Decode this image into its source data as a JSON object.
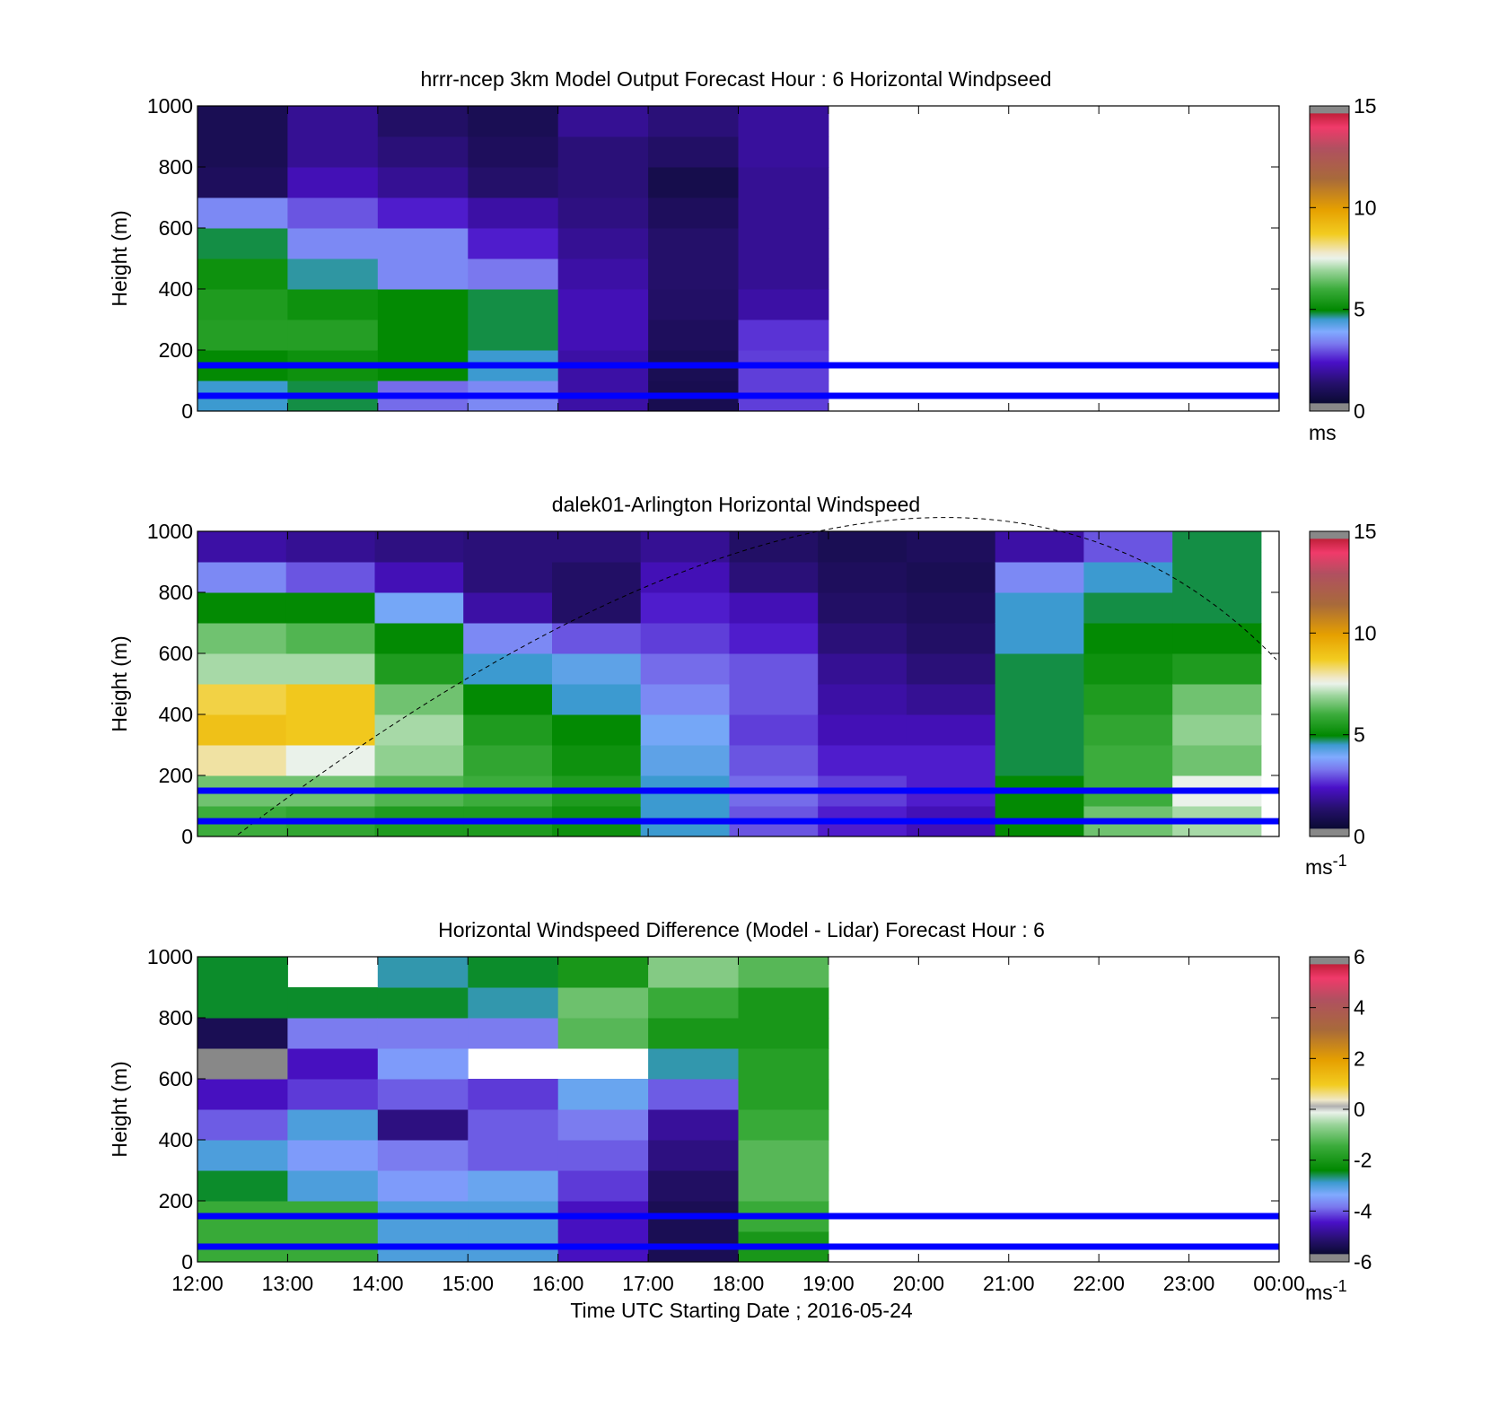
{
  "x_axis": {
    "label": "Time UTC  Starting Date ; 2016-05-24",
    "ticks": [
      "12:00",
      "13:00",
      "14:00",
      "15:00",
      "16:00",
      "17:00",
      "18:00",
      "19:00",
      "20:00",
      "21:00",
      "22:00",
      "23:00",
      "00:00"
    ]
  },
  "y_axis": {
    "label": "Height (m)",
    "ticks": [
      "0",
      "200",
      "400",
      "600",
      "800",
      "1000"
    ]
  },
  "panels": [
    {
      "title": "hrrr-ncep 3km Model Output   Forecast Hour : 6 Horizontal Windpseed",
      "colorbar_ticks": [
        "0",
        "5",
        "10",
        "15"
      ],
      "units": "ms",
      "units_sup": ""
    },
    {
      "title": "dalek01-Arlington  Horizontal Windspeed",
      "colorbar_ticks": [
        "0",
        "5",
        "10",
        "15"
      ],
      "units": "ms",
      "units_sup": "-1"
    },
    {
      "title": "Horizontal Windspeed Difference (Model - Lidar) Forecast Hour : 6",
      "colorbar_ticks": [
        "-6",
        "-4",
        "-2",
        "0",
        "2",
        "4",
        "6"
      ],
      "units": "ms",
      "units_sup": "-1"
    }
  ],
  "chart_data": [
    {
      "type": "heatmap",
      "title": "hrrr-ncep 3km Model Output   Forecast Hour : 6 Horizontal Windpseed",
      "xlabel": "",
      "ylabel": "Height (m)",
      "x_range_hours_utc": [
        12,
        24
      ],
      "ylim": [
        0,
        1000
      ],
      "clim": [
        0,
        15
      ],
      "colorbar_unit": "ms",
      "data_coverage_hours": [
        12,
        19
      ],
      "reference_lines_m": [
        50,
        150
      ],
      "colors": {
        "reference_line": "#0000ff"
      },
      "time_bins": [
        "12:00",
        "13:00",
        "14:00",
        "15:00",
        "16:00",
        "17:00",
        "18:00"
      ],
      "height_bins_m": [
        50,
        150,
        250,
        350,
        450,
        550,
        650,
        750,
        850,
        950
      ],
      "values": [
        [
          4.5,
          5.0,
          5.6,
          5.5,
          5.2,
          4.8,
          3.5,
          1.0,
          0.8,
          0.8
        ],
        [
          4.8,
          5.2,
          5.6,
          5.2,
          4.6,
          3.5,
          3.0,
          2.2,
          1.8,
          1.8
        ],
        [
          3.2,
          5.0,
          5.0,
          5.0,
          3.5,
          3.5,
          2.5,
          1.8,
          1.5,
          1.2
        ],
        [
          3.5,
          4.5,
          4.8,
          4.8,
          3.3,
          2.5,
          2.0,
          1.3,
          1.0,
          0.8
        ],
        [
          2.0,
          2.0,
          2.2,
          2.2,
          2.0,
          1.8,
          1.6,
          1.5,
          1.5,
          1.8
        ],
        [
          0.7,
          0.8,
          1.0,
          1.2,
          1.3,
          1.3,
          1.0,
          0.6,
          1.2,
          1.5
        ],
        [
          2.8,
          2.8,
          2.7,
          2.0,
          1.8,
          1.8,
          1.8,
          1.8,
          1.9,
          1.9
        ]
      ]
    },
    {
      "type": "heatmap",
      "title": "dalek01-Arlington  Horizontal Windspeed",
      "xlabel": "",
      "ylabel": "Height (m)",
      "x_range_hours_utc": [
        12,
        24
      ],
      "ylim": [
        0,
        1000
      ],
      "clim": [
        0,
        15
      ],
      "colorbar_unit": "ms-1",
      "data_coverage_hours": [
        12,
        23.8
      ],
      "reference_lines_m": [
        50,
        150
      ],
      "colors": {
        "reference_line": "#0000ff"
      },
      "time_bins": [
        "12:00",
        "13:00",
        "14:00",
        "15:00",
        "16:00",
        "17:00",
        "18:00",
        "19:00",
        "20:00",
        "21:00",
        "22:00",
        "23:00"
      ],
      "height_bins_m": [
        50,
        150,
        250,
        350,
        450,
        550,
        650,
        750,
        850,
        950
      ],
      "values": [
        [
          6.0,
          6.5,
          8.0,
          9.0,
          8.5,
          7.0,
          6.5,
          5.0,
          3.5,
          2.0
        ],
        [
          5.8,
          6.5,
          7.5,
          8.8,
          8.8,
          7.0,
          6.2,
          5.0,
          3.0,
          1.8
        ],
        [
          5.5,
          6.2,
          6.8,
          7.0,
          6.5,
          5.5,
          5.0,
          4.0,
          2.2,
          1.6
        ],
        [
          5.5,
          6.0,
          5.8,
          5.5,
          5.0,
          4.5,
          3.5,
          2.0,
          1.5,
          1.5
        ],
        [
          5.2,
          5.5,
          5.2,
          5.0,
          4.5,
          4.2,
          3.0,
          1.2,
          1.2,
          1.5
        ],
        [
          4.5,
          4.5,
          4.2,
          4.0,
          3.5,
          3.2,
          2.8,
          2.5,
          2.2,
          1.8
        ],
        [
          3.0,
          3.2,
          3.0,
          2.8,
          3.0,
          3.0,
          2.5,
          2.2,
          1.5,
          1.2
        ],
        [
          2.5,
          2.8,
          2.5,
          2.2,
          2.0,
          1.8,
          1.5,
          1.2,
          1.0,
          0.8
        ],
        [
          2.2,
          2.5,
          2.5,
          2.2,
          1.8,
          1.5,
          1.2,
          1.0,
          0.8,
          1.0
        ],
        [
          5.0,
          5.0,
          4.8,
          4.8,
          4.8,
          4.8,
          4.5,
          4.5,
          3.5,
          2.0
        ],
        [
          6.5,
          6.0,
          6.0,
          5.8,
          5.5,
          5.2,
          5.0,
          4.8,
          4.5,
          3.0
        ],
        [
          7.0,
          7.5,
          6.5,
          6.8,
          6.5,
          5.5,
          5.0,
          4.8,
          4.8,
          4.8
        ]
      ]
    },
    {
      "type": "heatmap",
      "title": "Horizontal Windspeed Difference (Model - Lidar) Forecast Hour : 6",
      "xlabel": "Time UTC  Starting Date ; 2016-05-24",
      "ylabel": "Height (m)",
      "x_range_hours_utc": [
        12,
        24
      ],
      "ylim": [
        0,
        1000
      ],
      "clim": [
        -6,
        6
      ],
      "colorbar_unit": "ms-1",
      "data_coverage_hours": [
        12,
        19
      ],
      "reference_lines_m": [
        50,
        150
      ],
      "colors": {
        "reference_line": "#0000ff"
      },
      "time_bins": [
        "12:00",
        "13:00",
        "14:00",
        "15:00",
        "16:00",
        "17:00",
        "18:00"
      ],
      "height_bins_m": [
        50,
        150,
        250,
        350,
        450,
        550,
        650,
        750,
        850,
        950
      ],
      "values": [
        [
          -1.5,
          -1.5,
          -2.5,
          -3.0,
          -4.0,
          -4.5,
          6.5,
          -5.5,
          -2.5,
          -2.5
        ],
        [
          -1.5,
          -1.5,
          -3.0,
          -3.5,
          -3.0,
          -4.2,
          -4.5,
          -3.8,
          -2.5,
          null
        ],
        [
          -3.0,
          -3.0,
          -3.5,
          -3.8,
          -5.0,
          -4.0,
          -3.5,
          -3.8,
          -2.5,
          -2.8
        ],
        [
          -3.0,
          -3.0,
          -3.2,
          -4.0,
          -4.0,
          -4.2,
          null,
          -3.8,
          -2.8,
          -2.5
        ],
        [
          -4.5,
          -4.5,
          -4.2,
          -4.0,
          -3.8,
          -3.2,
          null,
          -1.2,
          -1.0,
          -2.0
        ],
        [
          -5.5,
          -5.5,
          -5.3,
          -5.0,
          -4.8,
          -4.0,
          -2.8,
          -2.0,
          -1.5,
          -0.8
        ],
        [
          -2.0,
          -1.5,
          -1.2,
          -1.2,
          -1.5,
          -1.8,
          -1.8,
          -2.0,
          -2.0,
          -1.2
        ]
      ]
    }
  ]
}
